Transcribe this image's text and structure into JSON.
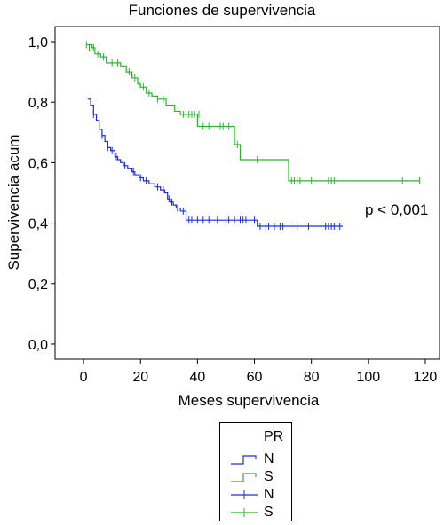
{
  "title": "Funciones de supervivencia",
  "annotation": "p < 0,001",
  "chart_data": {
    "type": "line",
    "subtype": "kaplan-meier-step",
    "xlabel": "Meses supervivencia",
    "ylabel": "Supervivencia acum",
    "xlim": [
      -10,
      125
    ],
    "ylim": [
      -0.05,
      1.05
    ],
    "xticks": [
      0,
      20,
      40,
      60,
      80,
      100,
      120
    ],
    "xtick_labels": [
      "0",
      "20",
      "40",
      "60",
      "80",
      "100",
      "120"
    ],
    "yticks": [
      0,
      0.2,
      0.4,
      0.6,
      0.8,
      1.0
    ],
    "ytick_labels": [
      "0,0",
      "0,2",
      "0,4",
      "0,6",
      "0,8",
      "1,0"
    ],
    "grid": false,
    "legend_position": "below",
    "legend_title": "PR",
    "series": [
      {
        "name": "N",
        "color": "#1f2fd1",
        "steps": [
          [
            1.5,
            0.81
          ],
          [
            2.5,
            0.79
          ],
          [
            3.5,
            0.76
          ],
          [
            4.5,
            0.74
          ],
          [
            5.5,
            0.71
          ],
          [
            6.5,
            0.69
          ],
          [
            7.5,
            0.67
          ],
          [
            8.5,
            0.65
          ],
          [
            9.5,
            0.64
          ],
          [
            11,
            0.62
          ],
          [
            12,
            0.61
          ],
          [
            13,
            0.6
          ],
          [
            14,
            0.59
          ],
          [
            15.5,
            0.58
          ],
          [
            17,
            0.57
          ],
          [
            18,
            0.56
          ],
          [
            19.5,
            0.55
          ],
          [
            21,
            0.54
          ],
          [
            23,
            0.53
          ],
          [
            25,
            0.52
          ],
          [
            27,
            0.51
          ],
          [
            28.5,
            0.5
          ],
          [
            29.5,
            0.48
          ],
          [
            30.5,
            0.47
          ],
          [
            31.5,
            0.46
          ],
          [
            32.5,
            0.45
          ],
          [
            34,
            0.44
          ],
          [
            36,
            0.41
          ],
          [
            61,
            0.39
          ]
        ],
        "x_end": 91,
        "censored": [
          [
            3.5,
            0.76
          ],
          [
            6.5,
            0.69
          ],
          [
            8.5,
            0.65
          ],
          [
            10,
            0.64
          ],
          [
            11.5,
            0.62
          ],
          [
            14.5,
            0.59
          ],
          [
            17.5,
            0.57
          ],
          [
            20,
            0.55
          ],
          [
            22,
            0.54
          ],
          [
            26,
            0.52
          ],
          [
            28,
            0.51
          ],
          [
            30,
            0.48
          ],
          [
            31,
            0.47
          ],
          [
            33,
            0.45
          ],
          [
            35,
            0.44
          ],
          [
            37,
            0.41
          ],
          [
            38,
            0.41
          ],
          [
            40,
            0.41
          ],
          [
            42,
            0.41
          ],
          [
            44,
            0.41
          ],
          [
            47,
            0.41
          ],
          [
            50,
            0.41
          ],
          [
            51,
            0.41
          ],
          [
            53,
            0.41
          ],
          [
            55,
            0.41
          ],
          [
            56,
            0.41
          ],
          [
            57,
            0.41
          ],
          [
            60,
            0.41
          ],
          [
            62,
            0.39
          ],
          [
            64,
            0.39
          ],
          [
            65,
            0.39
          ],
          [
            67,
            0.39
          ],
          [
            69,
            0.39
          ],
          [
            70,
            0.39
          ],
          [
            75,
            0.39
          ],
          [
            79,
            0.39
          ],
          [
            85,
            0.39
          ],
          [
            86,
            0.39
          ],
          [
            87,
            0.39
          ],
          [
            88,
            0.39
          ],
          [
            89,
            0.39
          ],
          [
            90,
            0.39
          ]
        ]
      },
      {
        "name": "S",
        "color": "#2ab52a",
        "steps": [
          [
            1,
            0.99
          ],
          [
            3,
            0.98
          ],
          [
            4,
            0.96
          ],
          [
            6,
            0.95
          ],
          [
            8,
            0.93
          ],
          [
            13,
            0.92
          ],
          [
            15,
            0.9
          ],
          [
            17,
            0.88
          ],
          [
            19,
            0.86
          ],
          [
            20,
            0.85
          ],
          [
            22,
            0.83
          ],
          [
            24,
            0.82
          ],
          [
            26,
            0.81
          ],
          [
            29,
            0.79
          ],
          [
            32,
            0.77
          ],
          [
            34,
            0.76
          ],
          [
            40,
            0.72
          ],
          [
            53,
            0.66
          ],
          [
            55,
            0.61
          ],
          [
            72,
            0.54
          ]
        ],
        "x_end": 118,
        "censored": [
          [
            1,
            0.99
          ],
          [
            2,
            0.98
          ],
          [
            3.5,
            0.98
          ],
          [
            5,
            0.96
          ],
          [
            7,
            0.95
          ],
          [
            8,
            0.94
          ],
          [
            10,
            0.93
          ],
          [
            12,
            0.93
          ],
          [
            16,
            0.9
          ],
          [
            18,
            0.88
          ],
          [
            19.5,
            0.86
          ],
          [
            21,
            0.85
          ],
          [
            23,
            0.83
          ],
          [
            26,
            0.81
          ],
          [
            28,
            0.81
          ],
          [
            35,
            0.76
          ],
          [
            36,
            0.76
          ],
          [
            37,
            0.76
          ],
          [
            38,
            0.76
          ],
          [
            39,
            0.76
          ],
          [
            40.5,
            0.76
          ],
          [
            42,
            0.72
          ],
          [
            44,
            0.72
          ],
          [
            48,
            0.72
          ],
          [
            49,
            0.72
          ],
          [
            51,
            0.72
          ],
          [
            54,
            0.66
          ],
          [
            61,
            0.61
          ],
          [
            73,
            0.54
          ],
          [
            74,
            0.54
          ],
          [
            75,
            0.54
          ],
          [
            76,
            0.54
          ],
          [
            80,
            0.54
          ],
          [
            86,
            0.54
          ],
          [
            87,
            0.54
          ],
          [
            88,
            0.54
          ],
          [
            112,
            0.54
          ],
          [
            118,
            0.54
          ]
        ]
      }
    ]
  },
  "legend": {
    "title": "PR",
    "items": [
      {
        "label": "N",
        "color": "#1f2fd1",
        "kind": "step"
      },
      {
        "label": "S",
        "color": "#2ab52a",
        "kind": "step"
      },
      {
        "label": "N",
        "color": "#1f2fd1",
        "kind": "censored"
      },
      {
        "label": "S",
        "color": "#2ab52a",
        "kind": "censored"
      }
    ]
  }
}
